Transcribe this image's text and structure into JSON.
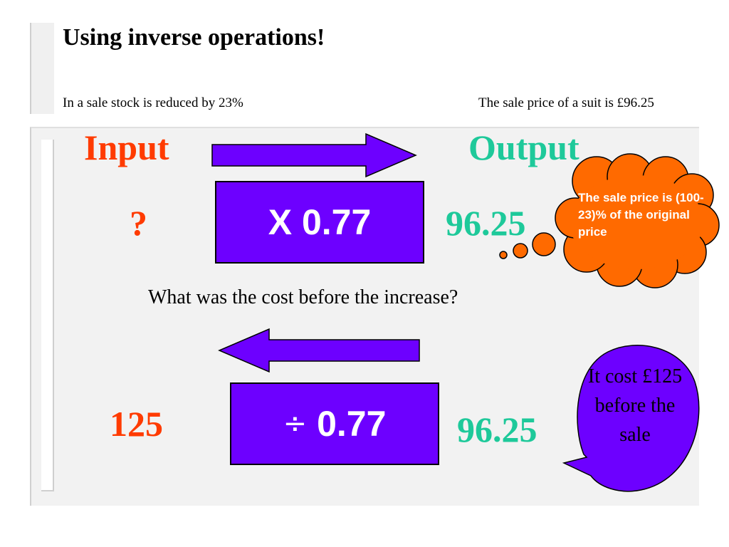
{
  "slide": {
    "title": "Using inverse operations!",
    "premise_left": "In a sale stock is reduced by 23%",
    "premise_right": "The sale price of a suit is £96.25"
  },
  "forward": {
    "input_label": "Input",
    "output_label": "Output",
    "input_value": "?",
    "operation": "X 0.77",
    "output_value": "96.25"
  },
  "question": "What was the cost before the increase?",
  "reverse": {
    "operation_symbol": "÷",
    "operation_value": "0.77",
    "input_value": "96.25",
    "result_value": "125"
  },
  "callouts": {
    "thought_cloud": "The sale price is (100-23)% of the original price",
    "speech_bubble": "It cost £125 before the sale"
  },
  "colors": {
    "operation_box": "#6d00ff",
    "input_red": "#ff3b00",
    "output_teal": "#1ec99a",
    "cloud_orange": "#ff6a00",
    "speech_purple": "#6d00ff"
  }
}
